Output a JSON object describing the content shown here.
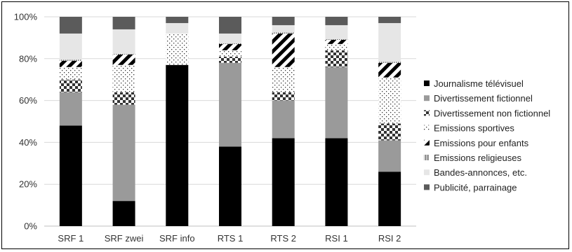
{
  "chart_data": {
    "type": "bar",
    "stacked": true,
    "percent": true,
    "categories": [
      "SRF 1",
      "SRF zwei",
      "SRF info",
      "RTS 1",
      "RTS 2",
      "RSI 1",
      "RSI 2"
    ],
    "yticks": [
      "0%",
      "20%",
      "40%",
      "60%",
      "80%",
      "100%"
    ],
    "ylim": [
      0,
      100
    ],
    "grid": true,
    "legend_position": "right",
    "series": [
      {
        "name": "Journalisme télévisuel",
        "pattern": "solid-black",
        "color": "#000000",
        "values": [
          48,
          12,
          77,
          38,
          42,
          42,
          26
        ]
      },
      {
        "name": "Divertissement fictionnel",
        "pattern": "solid-gray",
        "color": "#9a9a9a",
        "values": [
          16,
          46,
          0,
          40,
          18,
          34,
          15
        ]
      },
      {
        "name": "Divertissement non fictionnel",
        "pattern": "checker",
        "color": "#333333",
        "values": [
          6,
          6,
          0,
          3,
          4,
          8,
          8
        ]
      },
      {
        "name": "Emissions sportives",
        "pattern": "dots",
        "color": "#333333",
        "values": [
          6,
          13,
          15,
          3,
          12,
          3,
          22
        ]
      },
      {
        "name": "Emissions pour enfants",
        "pattern": "diagonal",
        "color": "#000000",
        "values": [
          3,
          5,
          0,
          3,
          16,
          2,
          7
        ]
      },
      {
        "name": "Emissions religieuses",
        "pattern": "vertical-lines",
        "color": "#555555",
        "values": [
          0.5,
          0.3,
          0,
          0.3,
          0.5,
          0.3,
          0.5
        ]
      },
      {
        "name": "Bandes-annonces, etc.",
        "pattern": "solid-lightgray",
        "color": "#e6e6e6",
        "values": [
          12.5,
          11.7,
          5,
          4.7,
          3.5,
          6.7,
          18.5
        ]
      },
      {
        "name": "Publicité, parrainage",
        "pattern": "solid-darkgray",
        "color": "#5b5b5b",
        "values": [
          8,
          6,
          3,
          8,
          4,
          4,
          3
        ]
      }
    ]
  }
}
